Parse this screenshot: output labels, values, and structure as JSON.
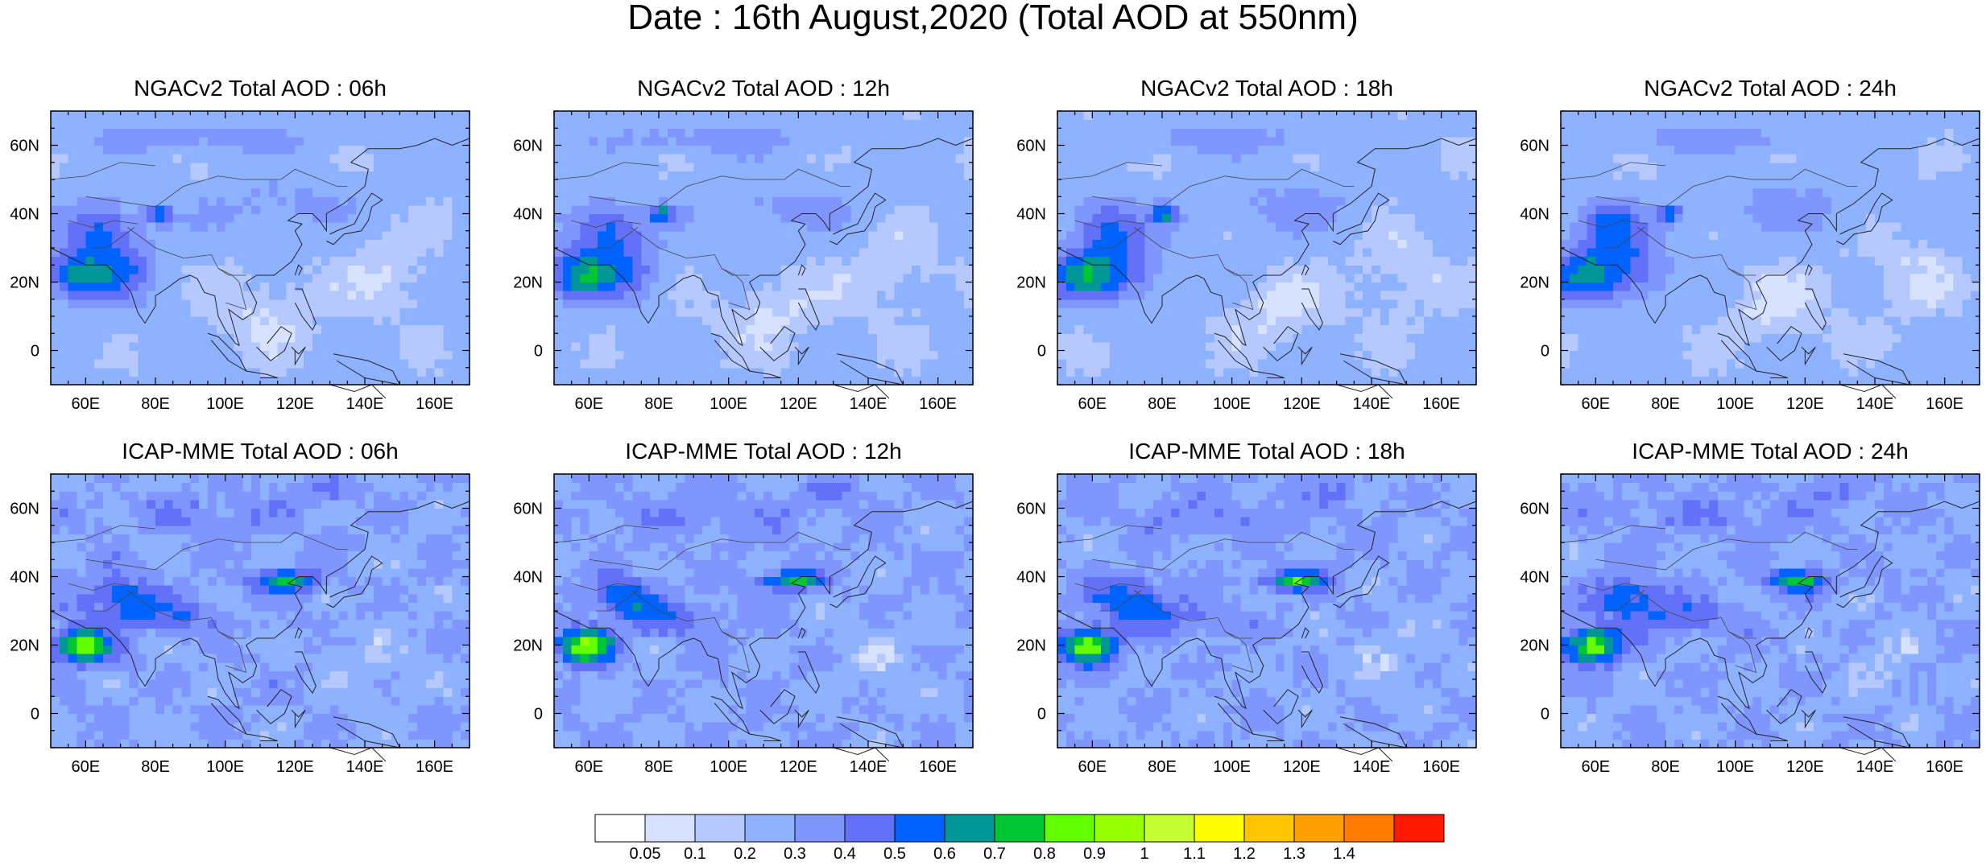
{
  "page": {
    "title": "Date : 16th August,2020 (Total AOD at 550nm)"
  },
  "map_axes": {
    "lon_range": [
      50,
      170
    ],
    "lat_range": [
      -10,
      70
    ],
    "x_ticks": [
      "60E",
      "80E",
      "100E",
      "120E",
      "140E",
      "160E"
    ],
    "x_tick_values": [
      60,
      80,
      100,
      120,
      140,
      160
    ],
    "y_ticks": [
      "0",
      "20N",
      "40N",
      "60N"
    ],
    "y_tick_values": [
      0,
      20,
      40,
      60
    ]
  },
  "panels": [
    {
      "title": "NGACv2 Total AOD : 06h",
      "model": "NGACv2",
      "lead": "06h"
    },
    {
      "title": "NGACv2 Total AOD : 12h",
      "model": "NGACv2",
      "lead": "12h"
    },
    {
      "title": "NGACv2 Total AOD : 18h",
      "model": "NGACv2",
      "lead": "18h"
    },
    {
      "title": "NGACv2 Total AOD : 24h",
      "model": "NGACv2",
      "lead": "24h"
    },
    {
      "title": "ICAP-MME Total AOD : 06h",
      "model": "ICAP-MME",
      "lead": "06h"
    },
    {
      "title": "ICAP-MME Total AOD : 12h",
      "model": "ICAP-MME",
      "lead": "12h"
    },
    {
      "title": "ICAP-MME Total AOD : 18h",
      "model": "ICAP-MME",
      "lead": "18h"
    },
    {
      "title": "ICAP-MME Total AOD : 24h",
      "model": "ICAP-MME",
      "lead": "24h"
    }
  ],
  "chart_data": {
    "type": "heatmap",
    "title": "Date : 16th August,2020 (Total AOD at 550nm)",
    "x_range": [
      50,
      170
    ],
    "y_range": [
      -10,
      70
    ],
    "colorbar": {
      "labels": [
        "0.05",
        "0.1",
        "0.2",
        "0.3",
        "0.4",
        "0.5",
        "0.6",
        "0.7",
        "0.8",
        "0.9",
        "1",
        "1.1",
        "1.2",
        "1.3",
        "1.4"
      ],
      "colors": [
        "#ffffff",
        "#d6e2ff",
        "#b5c9ff",
        "#8eb2ff",
        "#7f96ff",
        "#6370f8",
        "#0063ff",
        "#009696",
        "#00c633",
        "#63ff00",
        "#96ff00",
        "#c6ff33",
        "#ffff00",
        "#ffc600",
        "#ffa000",
        "#ff7c00",
        "#ff1900"
      ]
    }
  }
}
